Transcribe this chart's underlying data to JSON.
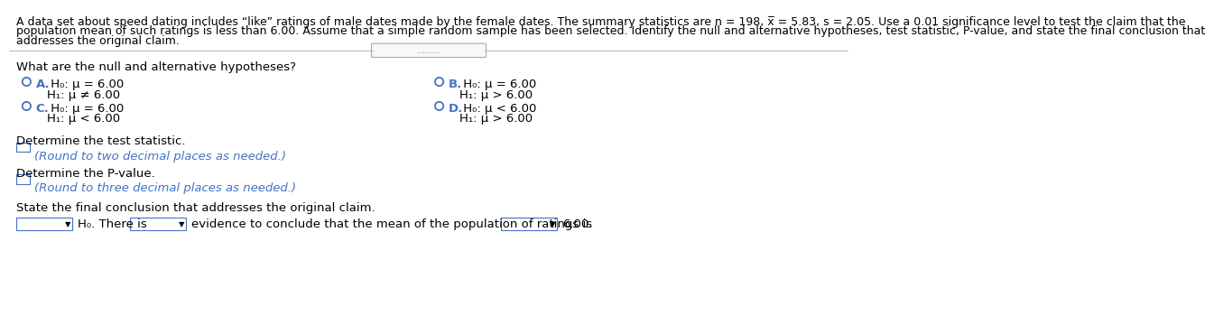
{
  "bg_color": "#ffffff",
  "text_color": "#000000",
  "blue_color": "#4472C4",
  "separator_color": "#BBBBBB",
  "paragraph_text_line1": "A data set about speed dating includes “like” ratings of male dates made by the female dates. The summary statistics are n = 198, x̅ = 5.83, s = 2.05. Use a 0.01 significance level to test the claim that the",
  "paragraph_text_line2": "population mean of such ratings is less than 6.00. Assume that a simple random sample has been selected. Identify the null and alternative hypotheses, test statistic, P-value, and state the final conclusion that",
  "paragraph_text_line3": "addresses the original claim.",
  "question_text": "What are the null and alternative hypotheses?",
  "optA_bold": "A.",
  "optA_h0": " H₀: μ = 6.00",
  "optA_h1": "H₁: μ ≠ 6.00",
  "optB_bold": "B.",
  "optB_h0": " H₀: μ = 6.00",
  "optB_h1": "H₁: μ > 6.00",
  "optC_bold": "C.",
  "optC_h0": " H₀: μ = 6.00",
  "optC_h1": "H₁: μ < 6.00",
  "optD_bold": "D.",
  "optD_h0": " H₀: μ < 6.00",
  "optD_h1": "H₁: μ > 6.00",
  "test_stat_label": "Determine the test statistic.",
  "test_stat_hint": "(Round to two decimal places as needed.)",
  "pvalue_label": "Determine the P-value.",
  "pvalue_hint": "(Round to three decimal places as needed.)",
  "conclusion_label": "State the final conclusion that addresses the original claim.",
  "conclusion_text": "evidence to conclude that the mean of the population of ratings is",
  "conclusion_end": "6.00.",
  "ho_label": "H₀. There is",
  "font_size_para": 9.0,
  "font_size_main": 9.5,
  "font_size_hint": 9.5,
  "radio_color": "#4472C4",
  "drop_border_color": "#4472C4",
  "hint_color": "#4472C4"
}
